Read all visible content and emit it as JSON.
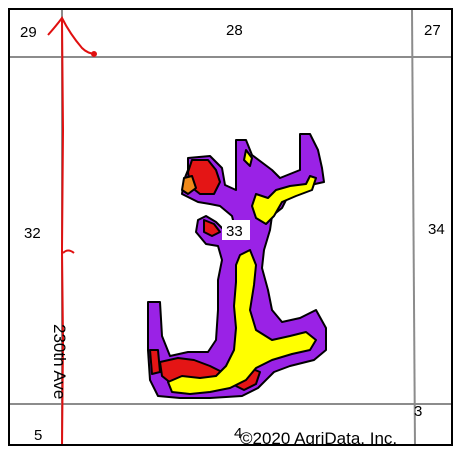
{
  "map": {
    "section_labels": {
      "s29": "29",
      "s28": "28",
      "s27": "27",
      "s32": "32",
      "s33": "33",
      "s34": "34",
      "s5": "5",
      "s4": "4",
      "s3": "3"
    },
    "road_label": "230th Ave",
    "credit": "©2020 AgriData, Inc."
  },
  "colors": {
    "background": "#ffffff",
    "section_line": "#8c8c8c",
    "annotation": "#e01010",
    "purple": "#9a22e6",
    "red": "#e41515",
    "yellow": "#ffff00",
    "orange": "#f08a1a",
    "outline": "#000000"
  },
  "legend_zones": [
    "purple",
    "red",
    "yellow",
    "orange"
  ]
}
